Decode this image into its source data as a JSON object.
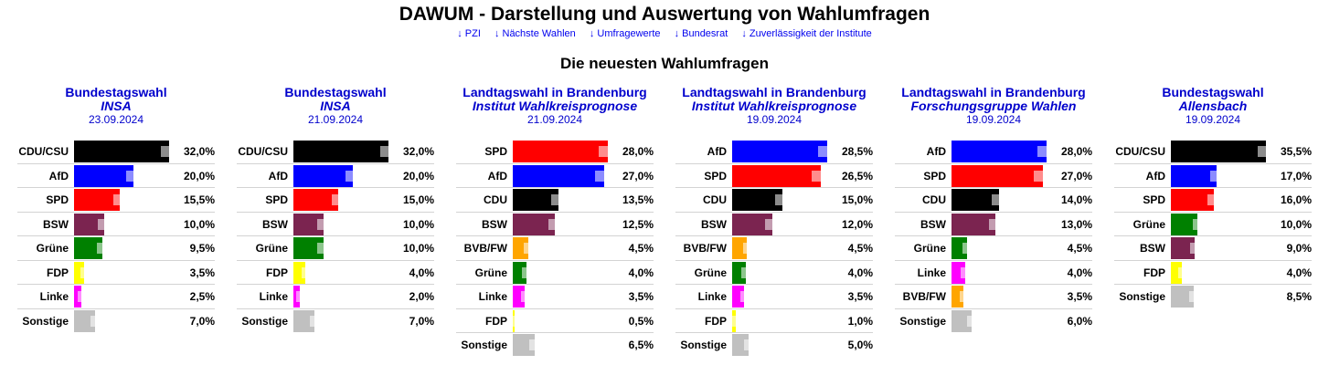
{
  "header": {
    "title": "DAWUM - Darstellung und Auswertung von Wahlumfragen",
    "nav": [
      {
        "label": "↓ PZI"
      },
      {
        "label": "↓ Nächste Wahlen"
      },
      {
        "label": "↓ Umfragewerte"
      },
      {
        "label": "↓ Bundesrat"
      },
      {
        "label": "↓ Zuverlässigkeit der Institute"
      }
    ],
    "section_title": "Die neuesten Wahlumfragen"
  },
  "party_colors": {
    "CDU/CSU": "#000000",
    "CDU": "#000000",
    "AfD": "#0000ff",
    "SPD": "#ff0000",
    "BSW": "#7b2450",
    "Grüne": "#008000",
    "FDP": "#ffff00",
    "Linke": "#ff00ff",
    "BVB/FW": "#ffa500",
    "Sonstige": "#c0c0c0"
  },
  "chart_data": [
    {
      "type": "bar",
      "title": "Bundestagswahl",
      "institute": "INSA",
      "date": "23.09.2024",
      "categories": [
        "CDU/CSU",
        "AfD",
        "SPD",
        "BSW",
        "Grüne",
        "FDP",
        "Linke",
        "Sonstige"
      ],
      "values": [
        32.0,
        20.0,
        15.5,
        10.0,
        9.5,
        3.5,
        2.5,
        7.0
      ],
      "labels": [
        "32,0%",
        "20,0%",
        "15,5%",
        "10,0%",
        "9,5%",
        "3,5%",
        "2,5%",
        "7,0%"
      ]
    },
    {
      "type": "bar",
      "title": "Bundestagswahl",
      "institute": "INSA",
      "date": "21.09.2024",
      "categories": [
        "CDU/CSU",
        "AfD",
        "SPD",
        "BSW",
        "Grüne",
        "FDP",
        "Linke",
        "Sonstige"
      ],
      "values": [
        32.0,
        20.0,
        15.0,
        10.0,
        10.0,
        4.0,
        2.0,
        7.0
      ],
      "labels": [
        "32,0%",
        "20,0%",
        "15,0%",
        "10,0%",
        "10,0%",
        "4,0%",
        "2,0%",
        "7,0%"
      ]
    },
    {
      "type": "bar",
      "title": "Landtagswahl in Brandenburg",
      "institute": "Institut Wahlkreisprognose",
      "date": "21.09.2024",
      "categories": [
        "SPD",
        "AfD",
        "CDU",
        "BSW",
        "BVB/FW",
        "Grüne",
        "Linke",
        "FDP",
        "Sonstige"
      ],
      "values": [
        28.0,
        27.0,
        13.5,
        12.5,
        4.5,
        4.0,
        3.5,
        0.5,
        6.5
      ],
      "labels": [
        "28,0%",
        "27,0%",
        "13,5%",
        "12,5%",
        "4,5%",
        "4,0%",
        "3,5%",
        "0,5%",
        "6,5%"
      ]
    },
    {
      "type": "bar",
      "title": "Landtagswahl in Brandenburg",
      "institute": "Institut Wahlkreisprognose",
      "date": "19.09.2024",
      "categories": [
        "AfD",
        "SPD",
        "CDU",
        "BSW",
        "BVB/FW",
        "Grüne",
        "Linke",
        "FDP",
        "Sonstige"
      ],
      "values": [
        28.5,
        26.5,
        15.0,
        12.0,
        4.5,
        4.0,
        3.5,
        1.0,
        5.0
      ],
      "labels": [
        "28,5%",
        "26,5%",
        "15,0%",
        "12,0%",
        "4,5%",
        "4,0%",
        "3,5%",
        "1,0%",
        "5,0%"
      ]
    },
    {
      "type": "bar",
      "title": "Landtagswahl in Brandenburg",
      "institute": "Forschungsgruppe Wahlen",
      "date": "19.09.2024",
      "categories": [
        "AfD",
        "SPD",
        "CDU",
        "BSW",
        "Grüne",
        "Linke",
        "BVB/FW",
        "Sonstige"
      ],
      "values": [
        28.0,
        27.0,
        14.0,
        13.0,
        4.5,
        4.0,
        3.5,
        6.0
      ],
      "labels": [
        "28,0%",
        "27,0%",
        "14,0%",
        "13,0%",
        "4,5%",
        "4,0%",
        "3,5%",
        "6,0%"
      ]
    },
    {
      "type": "bar",
      "title": "Bundestagswahl",
      "institute": "Allensbach",
      "date": "19.09.2024",
      "categories": [
        "CDU/CSU",
        "AfD",
        "SPD",
        "Grüne",
        "BSW",
        "FDP",
        "Sonstige"
      ],
      "values": [
        35.5,
        17.0,
        16.0,
        10.0,
        9.0,
        4.0,
        8.5
      ],
      "labels": [
        "35,5%",
        "17,0%",
        "16,0%",
        "10,0%",
        "9,0%",
        "4,0%",
        "8,5%"
      ]
    }
  ]
}
